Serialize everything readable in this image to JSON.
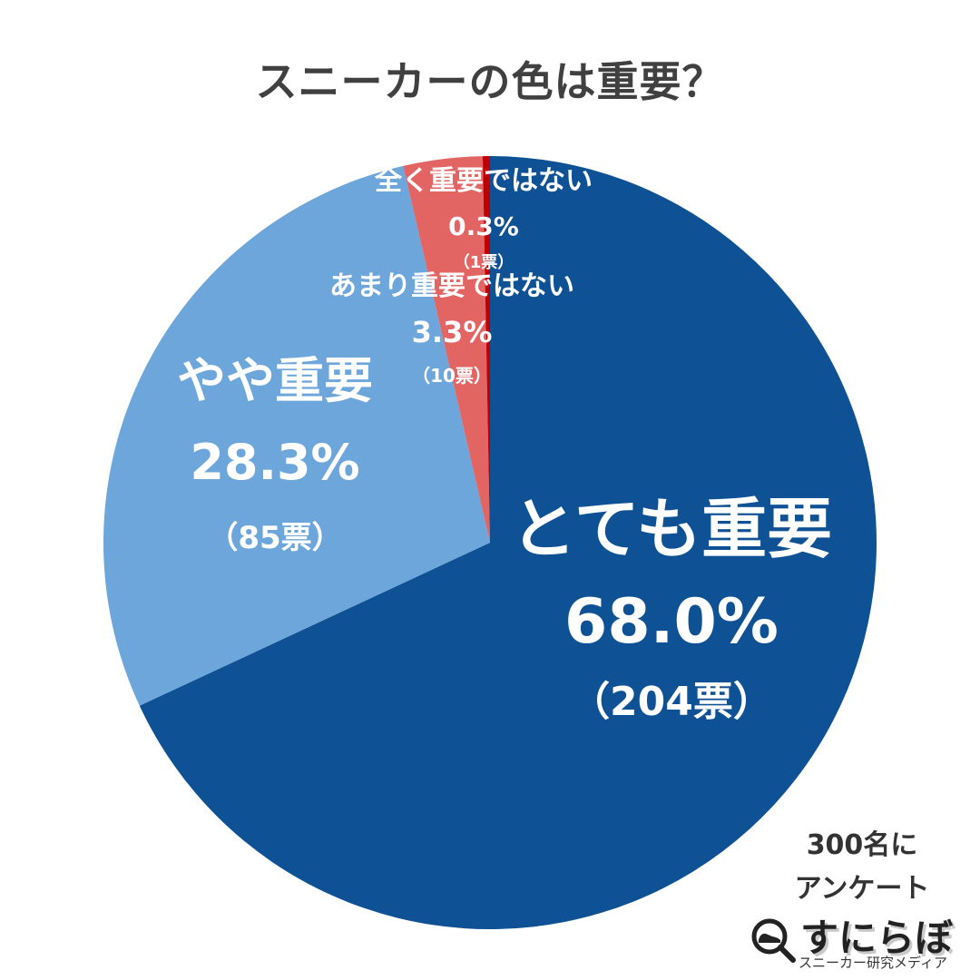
{
  "title": "スニーカーの色は重要？",
  "chart_data": {
    "type": "pie",
    "title": "スニーカーの色は重要？",
    "slices": [
      {
        "label": "とても重要",
        "value": 68.0,
        "percent_text": "68.0%",
        "votes_text": "（204票）",
        "color": "#0E5194"
      },
      {
        "label": "やや重要",
        "value": 28.3,
        "percent_text": "28.3%",
        "votes_text": "（85票）",
        "color": "#6DA6DB"
      },
      {
        "label": "あまり重要ではない",
        "value": 3.3,
        "percent_text": "3.3%",
        "votes_text": "（10票）",
        "color": "#E26563"
      },
      {
        "label": "全く重要ではない",
        "value": 0.3,
        "percent_text": "0.3%",
        "votes_text": "（1票）",
        "color": "#C00000"
      }
    ],
    "start_angle": "12 o'clock",
    "direction": "clockwise",
    "legend": "none"
  },
  "note": {
    "line1": "300名に",
    "line2": "アンケート"
  },
  "brand": {
    "name": "すにらぼ",
    "tagline": "スニーカー研究メディア",
    "icon": "magnifier-sneaker-icon"
  }
}
